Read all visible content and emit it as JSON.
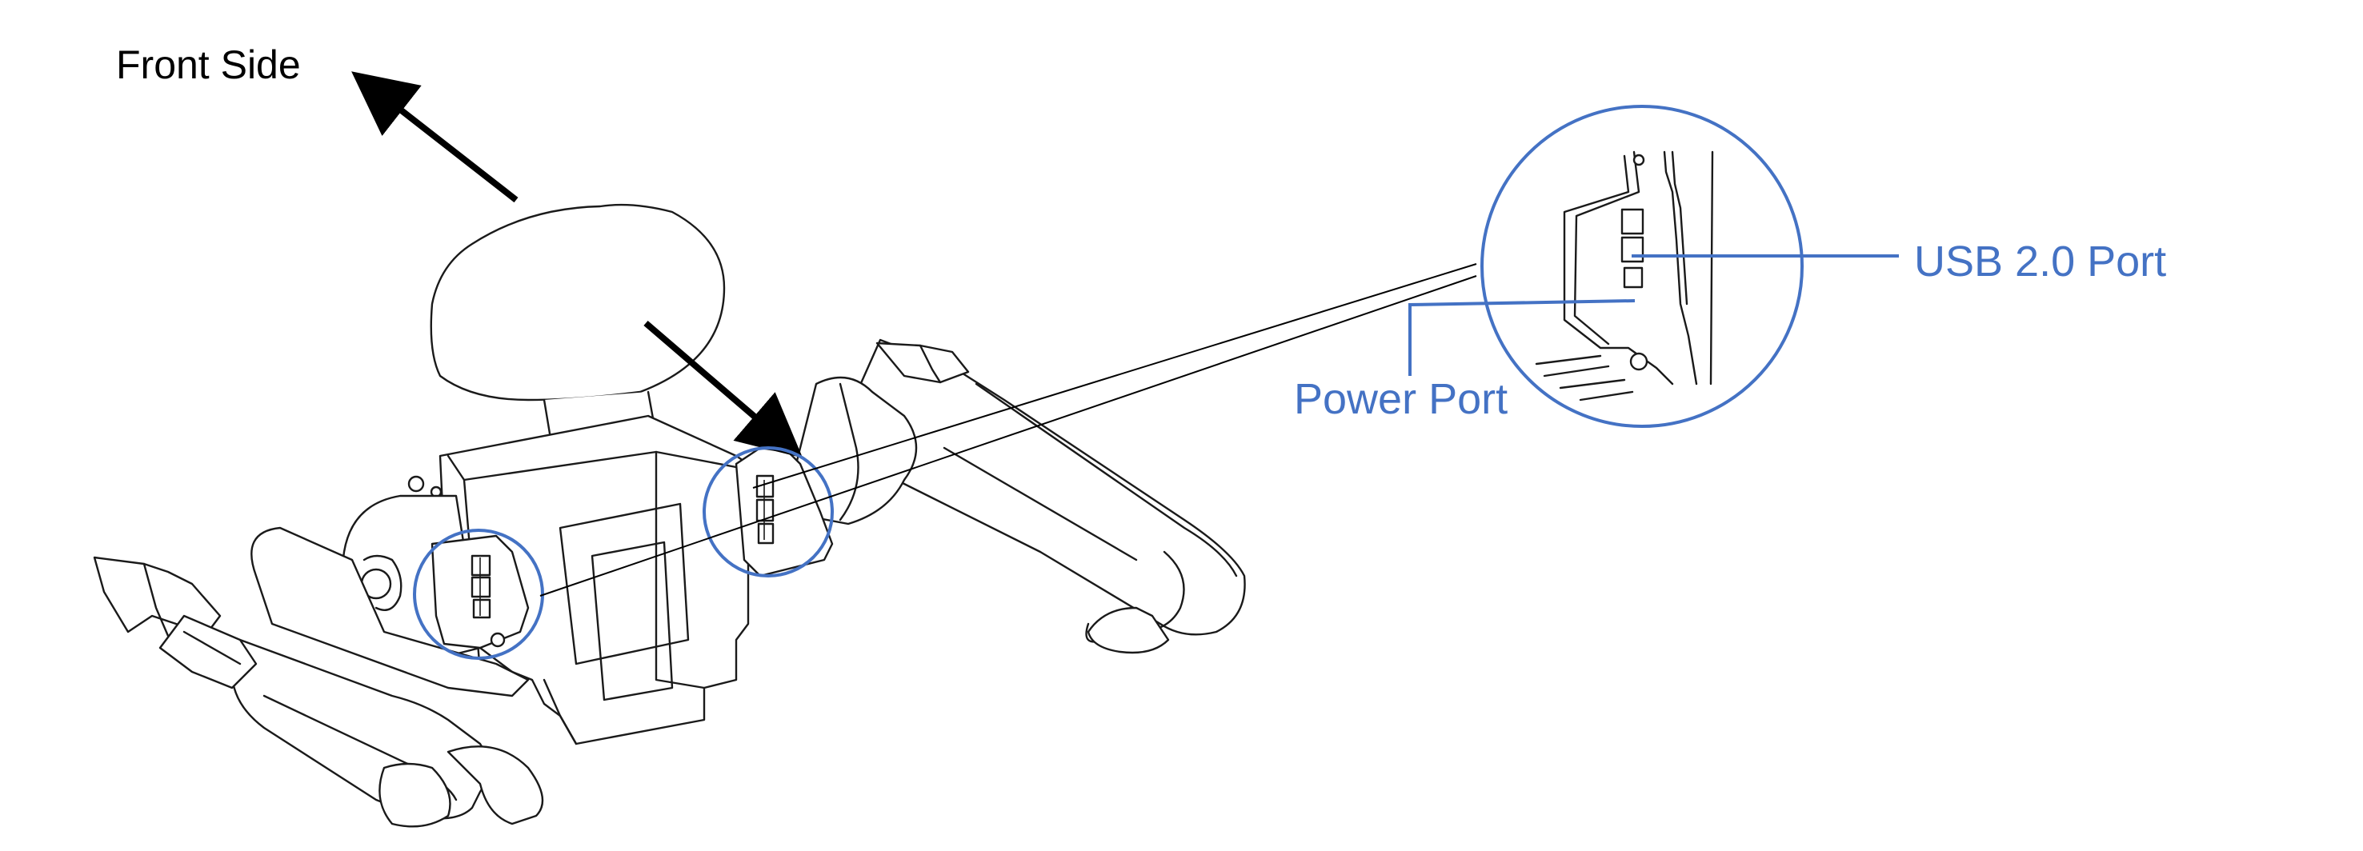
{
  "labels": {
    "front_side": "Front Side",
    "usb_port": "USB 2.0 Port",
    "power_port": "Power Port"
  },
  "colors": {
    "callout": "#4472C4",
    "lines": "#1a1a1a",
    "background": "#ffffff"
  }
}
